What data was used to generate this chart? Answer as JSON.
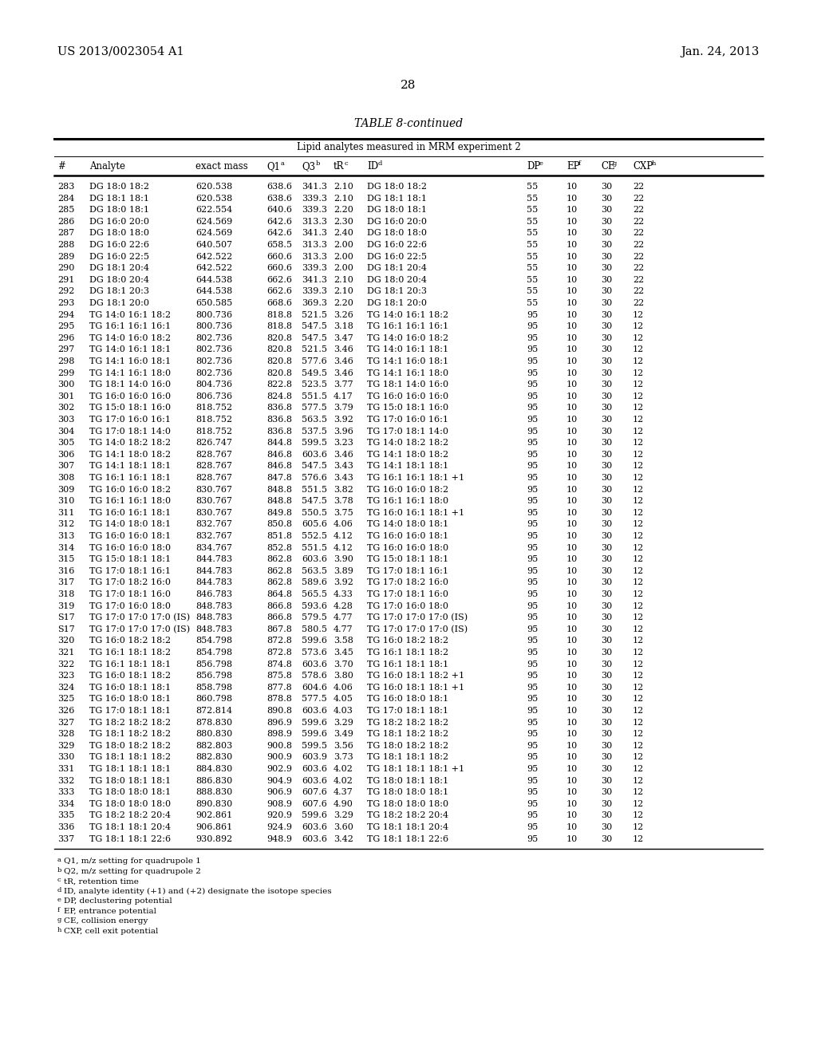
{
  "header_left": "US 2013/0023054 A1",
  "header_right": "Jan. 24, 2013",
  "page_number": "28",
  "table_title": "TABLE 8-continued",
  "table_subtitle": "Lipid analytes measured in MRM experiment 2",
  "footnotes": [
    "aQ1, m/z setting for quadrupole 1",
    "bQ2, m/z setting for quadrupole 2",
    "ctR, retention time",
    "dID, analyte identity (+1) and (+2) designate the isotope species",
    "eDP, declustering potential",
    "fEP, entrance potential",
    "gCE, collision energy",
    "hCXP, cell exit potential"
  ],
  "rows": [
    [
      "283",
      "DG 18:0 18:2",
      "620.538",
      "638.6",
      "341.3",
      "2.10",
      "DG 18:0 18:2",
      "55",
      "10",
      "30",
      "22"
    ],
    [
      "284",
      "DG 18:1 18:1",
      "620.538",
      "638.6",
      "339.3",
      "2.10",
      "DG 18:1 18:1",
      "55",
      "10",
      "30",
      "22"
    ],
    [
      "285",
      "DG 18:0 18:1",
      "622.554",
      "640.6",
      "339.3",
      "2.20",
      "DG 18:0 18:1",
      "55",
      "10",
      "30",
      "22"
    ],
    [
      "286",
      "DG 16:0 20:0",
      "624.569",
      "642.6",
      "313.3",
      "2.30",
      "DG 16:0 20:0",
      "55",
      "10",
      "30",
      "22"
    ],
    [
      "287",
      "DG 18:0 18:0",
      "624.569",
      "642.6",
      "341.3",
      "2.40",
      "DG 18:0 18:0",
      "55",
      "10",
      "30",
      "22"
    ],
    [
      "288",
      "DG 16:0 22:6",
      "640.507",
      "658.5",
      "313.3",
      "2.00",
      "DG 16:0 22:6",
      "55",
      "10",
      "30",
      "22"
    ],
    [
      "289",
      "DG 16:0 22:5",
      "642.522",
      "660.6",
      "313.3",
      "2.00",
      "DG 16:0 22:5",
      "55",
      "10",
      "30",
      "22"
    ],
    [
      "290",
      "DG 18:1 20:4",
      "642.522",
      "660.6",
      "339.3",
      "2.00",
      "DG 18:1 20:4",
      "55",
      "10",
      "30",
      "22"
    ],
    [
      "291",
      "DG 18:0 20:4",
      "644.538",
      "662.6",
      "341.3",
      "2.10",
      "DG 18:0 20:4",
      "55",
      "10",
      "30",
      "22"
    ],
    [
      "292",
      "DG 18:1 20:3",
      "644.538",
      "662.6",
      "339.3",
      "2.10",
      "DG 18:1 20:3",
      "55",
      "10",
      "30",
      "22"
    ],
    [
      "293",
      "DG 18:1 20:0",
      "650.585",
      "668.6",
      "369.3",
      "2.20",
      "DG 18:1 20:0",
      "55",
      "10",
      "30",
      "22"
    ],
    [
      "294",
      "TG 14:0 16:1 18:2",
      "800.736",
      "818.8",
      "521.5",
      "3.26",
      "TG 14:0 16:1 18:2",
      "95",
      "10",
      "30",
      "12"
    ],
    [
      "295",
      "TG 16:1 16:1 16:1",
      "800.736",
      "818.8",
      "547.5",
      "3.18",
      "TG 16:1 16:1 16:1",
      "95",
      "10",
      "30",
      "12"
    ],
    [
      "296",
      "TG 14:0 16:0 18:2",
      "802.736",
      "820.8",
      "547.5",
      "3.47",
      "TG 14:0 16:0 18:2",
      "95",
      "10",
      "30",
      "12"
    ],
    [
      "297",
      "TG 14:0 16:1 18:1",
      "802.736",
      "820.8",
      "521.5",
      "3.46",
      "TG 14:0 16:1 18:1",
      "95",
      "10",
      "30",
      "12"
    ],
    [
      "298",
      "TG 14:1 16:0 18:1",
      "802.736",
      "820.8",
      "577.6",
      "3.46",
      "TG 14:1 16:0 18:1",
      "95",
      "10",
      "30",
      "12"
    ],
    [
      "299",
      "TG 14:1 16:1 18:0",
      "802.736",
      "820.8",
      "549.5",
      "3.46",
      "TG 14:1 16:1 18:0",
      "95",
      "10",
      "30",
      "12"
    ],
    [
      "300",
      "TG 18:1 14:0 16:0",
      "804.736",
      "822.8",
      "523.5",
      "3.77",
      "TG 18:1 14:0 16:0",
      "95",
      "10",
      "30",
      "12"
    ],
    [
      "301",
      "TG 16:0 16:0 16:0",
      "806.736",
      "824.8",
      "551.5",
      "4.17",
      "TG 16:0 16:0 16:0",
      "95",
      "10",
      "30",
      "12"
    ],
    [
      "302",
      "TG 15:0 18:1 16:0",
      "818.752",
      "836.8",
      "577.5",
      "3.79",
      "TG 15:0 18:1 16:0",
      "95",
      "10",
      "30",
      "12"
    ],
    [
      "303",
      "TG 17:0 16:0 16:1",
      "818.752",
      "836.8",
      "563.5",
      "3.92",
      "TG 17:0 16:0 16:1",
      "95",
      "10",
      "30",
      "12"
    ],
    [
      "304",
      "TG 17:0 18:1 14:0",
      "818.752",
      "836.8",
      "537.5",
      "3.96",
      "TG 17:0 18:1 14:0",
      "95",
      "10",
      "30",
      "12"
    ],
    [
      "305",
      "TG 14:0 18:2 18:2",
      "826.747",
      "844.8",
      "599.5",
      "3.23",
      "TG 14:0 18:2 18:2",
      "95",
      "10",
      "30",
      "12"
    ],
    [
      "306",
      "TG 14:1 18:0 18:2",
      "828.767",
      "846.8",
      "603.6",
      "3.46",
      "TG 14:1 18:0 18:2",
      "95",
      "10",
      "30",
      "12"
    ],
    [
      "307",
      "TG 14:1 18:1 18:1",
      "828.767",
      "846.8",
      "547.5",
      "3.43",
      "TG 14:1 18:1 18:1",
      "95",
      "10",
      "30",
      "12"
    ],
    [
      "308",
      "TG 16:1 16:1 18:1",
      "828.767",
      "847.8",
      "576.6",
      "3.43",
      "TG 16:1 16:1 18:1 +1",
      "95",
      "10",
      "30",
      "12"
    ],
    [
      "309",
      "TG 16:0 16:0 18:2",
      "830.767",
      "848.8",
      "551.5",
      "3.82",
      "TG 16:0 16:0 18:2",
      "95",
      "10",
      "30",
      "12"
    ],
    [
      "310",
      "TG 16:1 16:1 18:0",
      "830.767",
      "848.8",
      "547.5",
      "3.78",
      "TG 16:1 16:1 18:0",
      "95",
      "10",
      "30",
      "12"
    ],
    [
      "311",
      "TG 16:0 16:1 18:1",
      "830.767",
      "849.8",
      "550.5",
      "3.75",
      "TG 16:0 16:1 18:1 +1",
      "95",
      "10",
      "30",
      "12"
    ],
    [
      "312",
      "TG 14:0 18:0 18:1",
      "832.767",
      "850.8",
      "605.6",
      "4.06",
      "TG 14:0 18:0 18:1",
      "95",
      "10",
      "30",
      "12"
    ],
    [
      "313",
      "TG 16:0 16:0 18:1",
      "832.767",
      "851.8",
      "552.5",
      "4.12",
      "TG 16:0 16:0 18:1",
      "95",
      "10",
      "30",
      "12"
    ],
    [
      "314",
      "TG 16:0 16:0 18:0",
      "834.767",
      "852.8",
      "551.5",
      "4.12",
      "TG 16:0 16:0 18:0",
      "95",
      "10",
      "30",
      "12"
    ],
    [
      "315",
      "TG 15:0 18:1 18:1",
      "844.783",
      "862.8",
      "603.6",
      "3.90",
      "TG 15:0 18:1 18:1",
      "95",
      "10",
      "30",
      "12"
    ],
    [
      "316",
      "TG 17:0 18:1 16:1",
      "844.783",
      "862.8",
      "563.5",
      "3.89",
      "TG 17:0 18:1 16:1",
      "95",
      "10",
      "30",
      "12"
    ],
    [
      "317",
      "TG 17:0 18:2 16:0",
      "844.783",
      "862.8",
      "589.6",
      "3.92",
      "TG 17:0 18:2 16:0",
      "95",
      "10",
      "30",
      "12"
    ],
    [
      "318",
      "TG 17:0 18:1 16:0",
      "846.783",
      "864.8",
      "565.5",
      "4.33",
      "TG 17:0 18:1 16:0",
      "95",
      "10",
      "30",
      "12"
    ],
    [
      "319",
      "TG 17:0 16:0 18:0",
      "848.783",
      "866.8",
      "593.6",
      "4.28",
      "TG 17:0 16:0 18:0",
      "95",
      "10",
      "30",
      "12"
    ],
    [
      "S17",
      "TG 17:0 17:0 17:0 (IS)",
      "848.783",
      "866.8",
      "579.5",
      "4.77",
      "TG 17:0 17:0 17:0 (IS)",
      "95",
      "10",
      "30",
      "12"
    ],
    [
      "S17",
      "TG 17:0 17:0 17:0 (IS)",
      "848.783",
      "867.8",
      "580.5",
      "4.77",
      "TG 17:0 17:0 17:0 (IS)",
      "95",
      "10",
      "30",
      "12"
    ],
    [
      "320",
      "TG 16:0 18:2 18:2",
      "854.798",
      "872.8",
      "599.6",
      "3.58",
      "TG 16:0 18:2 18:2",
      "95",
      "10",
      "30",
      "12"
    ],
    [
      "321",
      "TG 16:1 18:1 18:2",
      "854.798",
      "872.8",
      "573.6",
      "3.45",
      "TG 16:1 18:1 18:2",
      "95",
      "10",
      "30",
      "12"
    ],
    [
      "322",
      "TG 16:1 18:1 18:1",
      "856.798",
      "874.8",
      "603.6",
      "3.70",
      "TG 16:1 18:1 18:1",
      "95",
      "10",
      "30",
      "12"
    ],
    [
      "323",
      "TG 16:0 18:1 18:2",
      "856.798",
      "875.8",
      "578.6",
      "3.80",
      "TG 16:0 18:1 18:2 +1",
      "95",
      "10",
      "30",
      "12"
    ],
    [
      "324",
      "TG 16:0 18:1 18:1",
      "858.798",
      "877.8",
      "604.6",
      "4.06",
      "TG 16:0 18:1 18:1 +1",
      "95",
      "10",
      "30",
      "12"
    ],
    [
      "325",
      "TG 16:0 18:0 18:1",
      "860.798",
      "878.8",
      "577.5",
      "4.05",
      "TG 16:0 18:0 18:1",
      "95",
      "10",
      "30",
      "12"
    ],
    [
      "326",
      "TG 17:0 18:1 18:1",
      "872.814",
      "890.8",
      "603.6",
      "4.03",
      "TG 17:0 18:1 18:1",
      "95",
      "10",
      "30",
      "12"
    ],
    [
      "327",
      "TG 18:2 18:2 18:2",
      "878.830",
      "896.9",
      "599.6",
      "3.29",
      "TG 18:2 18:2 18:2",
      "95",
      "10",
      "30",
      "12"
    ],
    [
      "328",
      "TG 18:1 18:2 18:2",
      "880.830",
      "898.9",
      "599.6",
      "3.49",
      "TG 18:1 18:2 18:2",
      "95",
      "10",
      "30",
      "12"
    ],
    [
      "329",
      "TG 18:0 18:2 18:2",
      "882.803",
      "900.8",
      "599.5",
      "3.56",
      "TG 18:0 18:2 18:2",
      "95",
      "10",
      "30",
      "12"
    ],
    [
      "330",
      "TG 18:1 18:1 18:2",
      "882.830",
      "900.9",
      "603.9",
      "3.73",
      "TG 18:1 18:1 18:2",
      "95",
      "10",
      "30",
      "12"
    ],
    [
      "331",
      "TG 18:1 18:1 18:1",
      "884.830",
      "902.9",
      "603.6",
      "4.02",
      "TG 18:1 18:1 18:1 +1",
      "95",
      "10",
      "30",
      "12"
    ],
    [
      "332",
      "TG 18:0 18:1 18:1",
      "886.830",
      "904.9",
      "603.6",
      "4.02",
      "TG 18:0 18:1 18:1",
      "95",
      "10",
      "30",
      "12"
    ],
    [
      "333",
      "TG 18:0 18:0 18:1",
      "888.830",
      "906.9",
      "607.6",
      "4.37",
      "TG 18:0 18:0 18:1",
      "95",
      "10",
      "30",
      "12"
    ],
    [
      "334",
      "TG 18:0 18:0 18:0",
      "890.830",
      "908.9",
      "607.6",
      "4.90",
      "TG 18:0 18:0 18:0",
      "95",
      "10",
      "30",
      "12"
    ],
    [
      "335",
      "TG 18:2 18:2 20:4",
      "902.861",
      "920.9",
      "599.6",
      "3.29",
      "TG 18:2 18:2 20:4",
      "95",
      "10",
      "30",
      "12"
    ],
    [
      "336",
      "TG 18:1 18:1 20:4",
      "906.861",
      "924.9",
      "603.6",
      "3.60",
      "TG 18:1 18:1 20:4",
      "95",
      "10",
      "30",
      "12"
    ],
    [
      "337",
      "TG 18:1 18:1 22:6",
      "930.892",
      "948.9",
      "603.6",
      "3.42",
      "TG 18:1 18:1 22:6",
      "95",
      "10",
      "30",
      "12"
    ]
  ]
}
